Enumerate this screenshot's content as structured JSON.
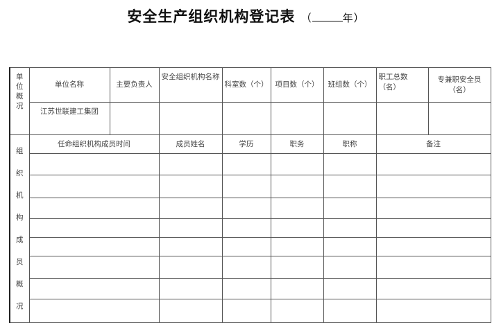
{
  "title": {
    "main": "安全生产组织机构登记表",
    "year_open": "（",
    "year_suffix": "年）"
  },
  "unit_section": {
    "side_label": "单位概况",
    "headers": [
      "单位名称",
      "主要负责人",
      "安全组织机构名称",
      "科室数（个）",
      "项目数（个）",
      "班组数（个）",
      "职工总数（名）",
      "专兼职安全员（名）"
    ],
    "values": [
      "江苏世联建工集团",
      "",
      "",
      "",
      "",
      "",
      "",
      ""
    ]
  },
  "member_section": {
    "side_label": "组织机构成员概况",
    "headers": [
      "任命组织机构成员时间",
      "成员姓名",
      "学历",
      "职务",
      "职称",
      "备注"
    ],
    "row_count": 8
  }
}
